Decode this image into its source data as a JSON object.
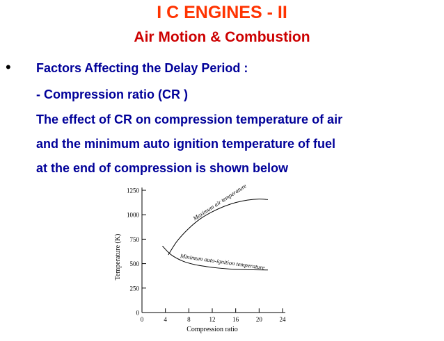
{
  "slide": {
    "title": "I C ENGINES - II",
    "subtitle": "Air Motion & Combustion",
    "bullet": "•",
    "heading": "Factors Affecting the Delay Period :",
    "lines": [
      "- Compression ratio (CR )",
      "The effect of CR on compression temperature of air",
      "and the minimum auto ignition temperature of fuel",
      "at the end of compression is shown below"
    ]
  },
  "chart_data": {
    "type": "line",
    "xlabel": "Compression ratio",
    "ylabel": "Temperature (K)",
    "x_ticks": [
      0,
      4,
      8,
      12,
      16,
      20,
      24
    ],
    "y_ticks": [
      0,
      250,
      500,
      750,
      1000,
      1250
    ],
    "xlim": [
      0,
      24
    ],
    "ylim": [
      0,
      1250
    ],
    "grid": false,
    "series": [
      {
        "name": "Maximum air temperature",
        "x": [
          4.5,
          6,
          8,
          10,
          12,
          14,
          16,
          18,
          20,
          21.5
        ],
        "y": [
          590,
          730,
          860,
          960,
          1030,
          1085,
          1125,
          1150,
          1160,
          1155
        ]
      },
      {
        "name": "Minimum auto-ignition temperature",
        "x": [
          3.5,
          5,
          7,
          9,
          11,
          13,
          15,
          17,
          19,
          21.5
        ],
        "y": [
          680,
          590,
          525,
          490,
          470,
          455,
          445,
          440,
          437,
          435
        ]
      }
    ]
  }
}
